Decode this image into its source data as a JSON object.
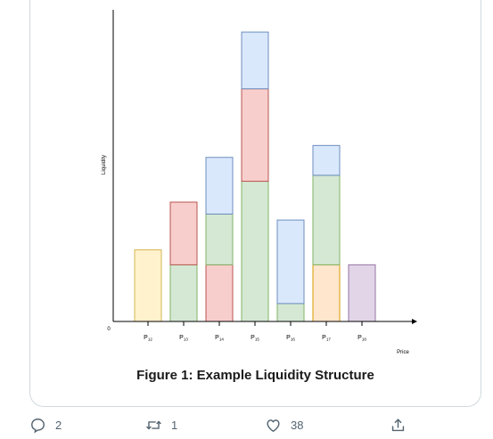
{
  "figure": {
    "caption": "Figure 1: Example Liquidity Structure"
  },
  "chart_data": {
    "type": "bar",
    "subtype": "stacked",
    "ylabel": "Liquidity",
    "xlabel": "Price",
    "origin_label": "0",
    "categories": [
      "P12",
      "P13",
      "P14",
      "P15",
      "P16",
      "P17",
      "P18"
    ],
    "category_labels": [
      {
        "base": "P",
        "sub": "12"
      },
      {
        "base": "P",
        "sub": "13"
      },
      {
        "base": "P",
        "sub": "14"
      },
      {
        "base": "P",
        "sub": "15"
      },
      {
        "base": "P",
        "sub": "16"
      },
      {
        "base": "P",
        "sub": "17"
      },
      {
        "base": "P",
        "sub": "18"
      }
    ],
    "ylim": [
      0,
      100
    ],
    "grid": false,
    "legend": "none",
    "stacks": [
      [
        {
          "value": 24,
          "color": "#fff2cc",
          "stroke": "#d6b656"
        }
      ],
      [
        {
          "value": 19,
          "color": "#d5e8d4",
          "stroke": "#82b366"
        },
        {
          "value": 21,
          "color": "#f8cecc",
          "stroke": "#b85450"
        }
      ],
      [
        {
          "value": 19,
          "color": "#f8cecc",
          "stroke": "#b85450"
        },
        {
          "value": 17,
          "color": "#d5e8d4",
          "stroke": "#82b366"
        },
        {
          "value": 19,
          "color": "#dae8fc",
          "stroke": "#6c8ebf"
        }
      ],
      [
        {
          "value": 47,
          "color": "#d5e8d4",
          "stroke": "#82b366"
        },
        {
          "value": 31,
          "color": "#f8cecc",
          "stroke": "#b85450"
        },
        {
          "value": 19,
          "color": "#dae8fc",
          "stroke": "#6c8ebf"
        }
      ],
      [
        {
          "value": 6,
          "color": "#d5e8d4",
          "stroke": "#82b366"
        },
        {
          "value": 28,
          "color": "#dae8fc",
          "stroke": "#6c8ebf"
        }
      ],
      [
        {
          "value": 19,
          "color": "#ffe6cc",
          "stroke": "#d79b00"
        },
        {
          "value": 30,
          "color": "#d5e8d4",
          "stroke": "#82b366"
        },
        {
          "value": 10,
          "color": "#dae8fc",
          "stroke": "#6c8ebf"
        }
      ],
      [
        {
          "value": 19,
          "color": "#e1d5e7",
          "stroke": "#9673a6"
        }
      ]
    ]
  },
  "actions": {
    "reply": {
      "icon": "reply-icon",
      "count": "2"
    },
    "retweet": {
      "icon": "retweet-icon",
      "count": "1"
    },
    "like": {
      "icon": "heart-icon",
      "count": "38"
    },
    "share": {
      "icon": "share-icon"
    }
  }
}
